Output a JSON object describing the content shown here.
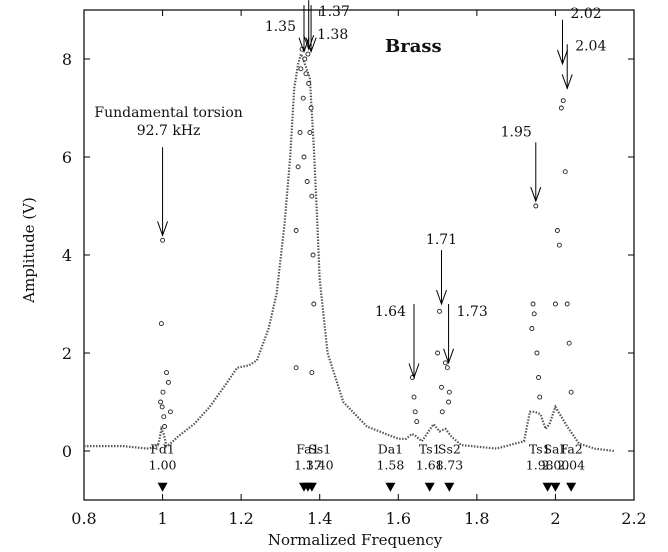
{
  "chart_data": {
    "type": "scatter",
    "title": "Brass",
    "xlabel": "Normalized Frequency",
    "ylabel": "Amplitude (V)",
    "xlim": [
      0.8,
      2.2
    ],
    "ylim": [
      -1,
      9
    ],
    "x_ticks": [
      "0.8",
      "1",
      "1.2",
      "1.4",
      "1.6",
      "1.8",
      "2",
      "2.2"
    ],
    "y_ticks": [
      "0",
      "2",
      "4",
      "6",
      "8"
    ],
    "grid": false,
    "curve_series": [
      {
        "name": "response",
        "x": [
          0.8,
          0.9,
          0.96,
          0.98,
          0.99,
          0.997,
          1.003,
          1.01,
          1.02,
          1.04,
          1.08,
          1.12,
          1.16,
          1.19,
          1.22,
          1.24,
          1.27,
          1.29,
          1.31,
          1.325,
          1.335,
          1.345,
          1.352,
          1.358,
          1.375,
          1.385,
          1.393,
          1.4,
          1.42,
          1.46,
          1.52,
          1.6,
          1.62,
          1.635,
          1.645,
          1.66,
          1.69,
          1.705,
          1.72,
          1.735,
          1.76,
          1.85,
          1.92,
          1.935,
          1.948,
          1.962,
          1.975,
          1.985,
          2.0,
          2.03,
          2.06,
          2.1,
          2.15
        ],
        "y": [
          0.1,
          0.1,
          0.05,
          0.08,
          0.15,
          0.45,
          0.35,
          0.1,
          0.15,
          0.3,
          0.55,
          0.9,
          1.35,
          1.7,
          1.75,
          1.85,
          2.5,
          3.2,
          4.6,
          6.0,
          7.4,
          7.9,
          8.1,
          8.0,
          7.6,
          6.2,
          4.8,
          3.5,
          2.0,
          1.0,
          0.5,
          0.25,
          0.25,
          0.35,
          0.3,
          0.2,
          0.55,
          0.4,
          0.45,
          0.3,
          0.12,
          0.05,
          0.2,
          0.8,
          0.8,
          0.75,
          0.45,
          0.55,
          0.9,
          0.5,
          0.15,
          0.05,
          0.0
        ]
      }
    ],
    "scatter_points": {
      "x": [
        0.995,
        0.997,
        0.999,
        1.0,
        1.001,
        1.003,
        1.005,
        1.01,
        1.015,
        1.02,
        1.34,
        1.345,
        1.35,
        1.352,
        1.355,
        1.358,
        1.36,
        1.362,
        1.365,
        1.368,
        1.37,
        1.372,
        1.375,
        1.378,
        1.38,
        1.383,
        1.385,
        1.34,
        1.38,
        1.636,
        1.64,
        1.643,
        1.647,
        1.7,
        1.705,
        1.71,
        1.712,
        1.72,
        1.725,
        1.728,
        1.73,
        1.94,
        1.943,
        1.946,
        1.95,
        1.953,
        1.957,
        1.96,
        2.0,
        2.005,
        2.01,
        2.015,
        2.02,
        2.025,
        2.03,
        2.035,
        2.04
      ],
      "y": [
        1.0,
        2.6,
        0.9,
        4.3,
        1.2,
        0.7,
        0.5,
        1.6,
        1.4,
        0.8,
        4.5,
        5.8,
        6.5,
        7.8,
        8.2,
        7.2,
        6.0,
        8.0,
        7.7,
        5.5,
        8.1,
        7.5,
        6.5,
        7.0,
        5.2,
        4.0,
        3.0,
        1.7,
        1.6,
        1.5,
        1.1,
        0.8,
        0.6,
        2.0,
        2.85,
        1.3,
        0.8,
        1.8,
        1.7,
        1.0,
        1.2,
        2.5,
        3.0,
        2.8,
        5.0,
        2.0,
        1.5,
        1.1,
        3.0,
        4.5,
        4.2,
        7.0,
        7.15,
        5.7,
        3.0,
        2.2,
        1.2
      ]
    },
    "annotations": [
      {
        "text": "Fundamental torsion",
        "text2": "92.7 kHz",
        "x": 1.0,
        "y_tip": 4.4,
        "y_tail": 6.2
      },
      {
        "text": "1.35",
        "x": 1.36,
        "y_tip": 8.15,
        "y_tail": 9.1
      },
      {
        "text": "1.37",
        "x": 1.372,
        "y_tip": 8.2,
        "y_tail": 9.2
      },
      {
        "text": "1.38",
        "x": 1.378,
        "y_tip": 8.15,
        "y_tail": 9.1
      },
      {
        "text": "1.64",
        "x": 1.64,
        "y_tip": 1.5,
        "y_tail": 3.0
      },
      {
        "text": "1.71",
        "x": 1.71,
        "y_tip": 3.0,
        "y_tail": 4.1
      },
      {
        "text": "1.73",
        "x": 1.728,
        "y_tip": 1.8,
        "y_tail": 3.0
      },
      {
        "text": "1.95",
        "x": 1.95,
        "y_tip": 5.1,
        "y_tail": 6.3
      },
      {
        "text": "2.02",
        "x": 2.018,
        "y_tip": 7.9,
        "y_tail": 8.8
      },
      {
        "text": "2.04",
        "x": 2.03,
        "y_tip": 7.4,
        "y_tail": 8.3
      }
    ],
    "mode_labels": [
      {
        "name": "Fd1",
        "value": "1.00",
        "x": 1.0,
        "marker_x": 1.0
      },
      {
        "name": "Fa1",
        "value": "1.37",
        "x": 1.37,
        "marker_x": 1.36
      },
      {
        "name": "Ss1",
        "value": "1.40",
        "x": 1.4,
        "marker_x": 1.37
      },
      {
        "name": "Da1",
        "value": "1.58",
        "x": 1.58,
        "marker_x": 1.38
      },
      {
        "name": "Ts1",
        "value": "1.68",
        "x": 1.68,
        "marker_x": 1.58
      },
      {
        "name": "Ss2",
        "value": "1.73",
        "x": 1.73,
        "marker_x": 1.68
      },
      {
        "name": "Ts1",
        "value": "1.98",
        "x": 1.96,
        "marker_x": 1.73
      },
      {
        "name": "Sa1",
        "value": "2.00",
        "x": 2.0,
        "marker_x": 1.98
      },
      {
        "name": "Fa2",
        "value": "2.04",
        "x": 2.04,
        "marker_x": 2.0
      }
    ],
    "extra_markers": [
      2.04
    ]
  }
}
